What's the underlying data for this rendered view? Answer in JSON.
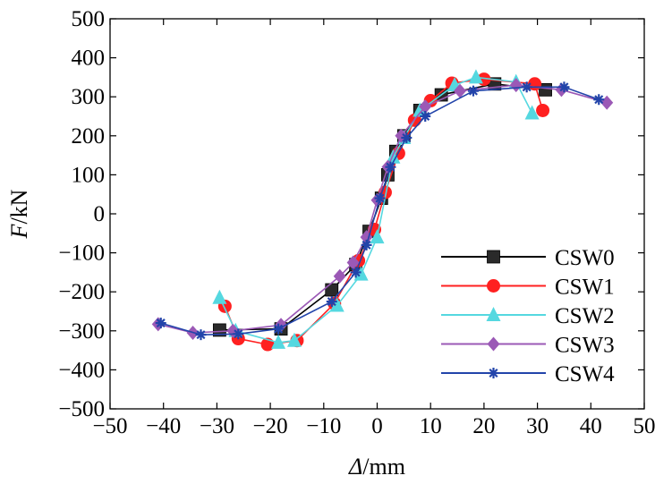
{
  "chart_data": {
    "type": "line",
    "xlabel_italic": "Δ",
    "xlabel_unit": "/mm",
    "ylabel_italic": "F",
    "ylabel_unit": "/kN",
    "xlim": [
      -50,
      50
    ],
    "ylim": [
      -500,
      500
    ],
    "xticks": [
      -50,
      -40,
      -30,
      -20,
      -10,
      0,
      10,
      20,
      30,
      40,
      50
    ],
    "yticks": [
      -500,
      -400,
      -300,
      -200,
      -100,
      0,
      100,
      200,
      300,
      400,
      500
    ],
    "xtick_labels": [
      "−50",
      "−40",
      "−30",
      "−20",
      "−10",
      "0",
      "10",
      "20",
      "30",
      "40",
      "50"
    ],
    "ytick_labels": [
      "−500",
      "−400",
      "−300",
      "−200",
      "−100",
      "0",
      "100",
      "200",
      "300",
      "400",
      "500"
    ],
    "grid": false,
    "legend_position": "bottom-right",
    "series": [
      {
        "name": "CSW0",
        "color": "#000000",
        "marker": "square",
        "marker_color": "#2a2a2a",
        "x": [
          -29.5,
          -18,
          -8.5,
          -4,
          -1.5,
          0.8,
          2,
          3.5,
          5,
          8,
          12,
          22,
          31.5
        ],
        "y": [
          -298,
          -295,
          -195,
          -130,
          -45,
          40,
          100,
          160,
          200,
          265,
          305,
          333,
          318
        ]
      },
      {
        "name": "CSW1",
        "color": "#ff2020",
        "marker": "circle",
        "marker_color": "#ff2020",
        "x": [
          -28.5,
          -26,
          -20.5,
          -15,
          -8,
          -3.5,
          -0.5,
          1.5,
          4,
          7,
          10,
          14,
          20,
          29.5,
          31
        ],
        "y": [
          -237,
          -320,
          -335,
          -325,
          -230,
          -120,
          -40,
          55,
          155,
          240,
          290,
          335,
          345,
          333,
          265
        ]
      },
      {
        "name": "CSW2",
        "color": "#55d8e0",
        "marker": "triangle",
        "marker_color": "#55d8e0",
        "x": [
          -29.5,
          -26.5,
          -18.5,
          -15.5,
          -7.5,
          -3,
          0,
          3,
          5,
          8,
          14.5,
          18.5,
          26,
          29
        ],
        "y": [
          -215,
          -300,
          -330,
          -325,
          -235,
          -155,
          -60,
          145,
          195,
          265,
          330,
          350,
          338,
          258
        ]
      },
      {
        "name": "CSW3",
        "color": "#9b59b6",
        "marker": "diamond",
        "marker_color": "#9b59b6",
        "x": [
          -41,
          -34.5,
          -27,
          -18,
          -7,
          -4.5,
          -2,
          0,
          2,
          4.5,
          9,
          15.5,
          26,
          34.5,
          43
        ],
        "y": [
          -283,
          -305,
          -300,
          -285,
          -160,
          -125,
          -60,
          35,
          120,
          200,
          275,
          315,
          330,
          318,
          285
        ]
      },
      {
        "name": "CSW4",
        "color": "#2244aa",
        "marker": "star",
        "marker_color": "#2244aa",
        "x": [
          -40.5,
          -33,
          -26,
          -18.5,
          -8.5,
          -4,
          -2,
          0.5,
          2.5,
          5.5,
          9,
          18,
          28,
          35,
          41.5
        ],
        "y": [
          -280,
          -310,
          -308,
          -295,
          -225,
          -150,
          -80,
          40,
          120,
          195,
          250,
          315,
          325,
          325,
          293
        ]
      }
    ]
  }
}
